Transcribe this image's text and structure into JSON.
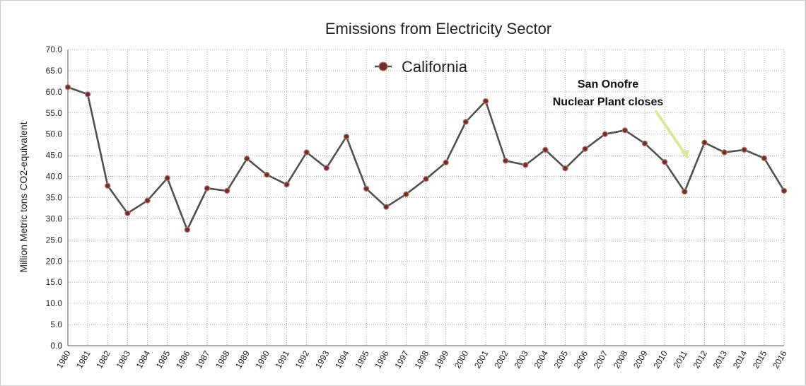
{
  "chart_data": {
    "type": "line",
    "title": "Emissions from Electricity Sector",
    "xlabel": "",
    "ylabel": "Million Metric tons CO2-equivalent",
    "ylim": [
      0,
      70
    ],
    "y_ticks": [
      "0.0",
      "5.0",
      "10.0",
      "15.0",
      "20.0",
      "25.0",
      "30.0",
      "35.0",
      "40.0",
      "45.0",
      "50.0",
      "55.0",
      "60.0",
      "65.0",
      "70.0"
    ],
    "categories": [
      "1980",
      "1981",
      "1982",
      "1983",
      "1984",
      "1985",
      "1986",
      "1987",
      "1988",
      "1989",
      "1990",
      "1991",
      "1992",
      "1993",
      "1994",
      "1995",
      "1996",
      "1997",
      "1998",
      "1999",
      "2000",
      "2001",
      "2002",
      "2003",
      "2004",
      "2005",
      "2006",
      "2007",
      "2008",
      "2009",
      "2010",
      "2011",
      "2012",
      "2013",
      "2014",
      "2015",
      "2016"
    ],
    "series": [
      {
        "name": "California",
        "values": [
          61.1,
          59.4,
          37.8,
          31.3,
          34.3,
          39.6,
          27.4,
          37.2,
          36.6,
          44.2,
          40.4,
          38.1,
          45.7,
          42.0,
          49.4,
          37.1,
          32.8,
          35.8,
          39.4,
          43.3,
          52.9,
          57.8,
          43.7,
          42.7,
          46.3,
          41.9,
          46.5,
          50.0,
          50.9,
          47.8,
          43.4,
          36.4,
          48.0,
          45.7,
          46.3,
          44.3,
          36.6
        ]
      }
    ],
    "legend": "top-center",
    "grid": true,
    "annotation": {
      "lines": [
        "San Onofre",
        "Nuclear Plant closes"
      ],
      "target_category": "2011"
    },
    "colors": {
      "line": "#505050",
      "point_fill": "#6e2f2a",
      "point_stroke": "#b07a74",
      "arrow": "#dde59a"
    }
  }
}
